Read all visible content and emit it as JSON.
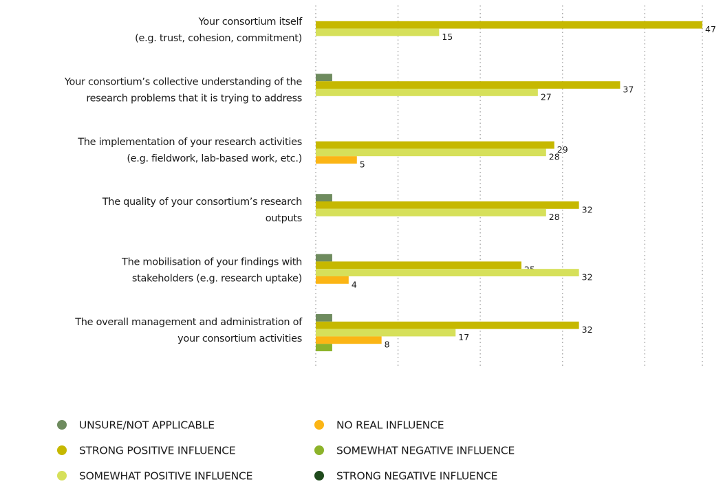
{
  "chart_data": {
    "type": "bar",
    "orientation": "horizontal",
    "categories": [
      [
        "Your consortium itself",
        "(e.g. trust, cohesion, commitment)"
      ],
      [
        "Your consortium’s collective understanding of the",
        "research problems that it is trying to address"
      ],
      [
        "The implementation of your research activities",
        "(e.g. fieldwork, lab-based work, etc.)"
      ],
      [
        "The quality of your consortium’s research",
        "outputs"
      ],
      [
        "The mobilisation of your findings with",
        "stakeholders (e.g. research uptake)"
      ],
      [
        "The overall management and administration of",
        "your consortium activities"
      ]
    ],
    "series": [
      {
        "name": "UNSURE/NOT APPLICABLE",
        "color": "#6e8b5e",
        "data_labels": false,
        "values": [
          null,
          2,
          null,
          2,
          2,
          2
        ]
      },
      {
        "name": "STRONG POSITIVE INFLUENCE",
        "color": "#c6b800",
        "data_labels": true,
        "values": [
          47,
          37,
          29,
          32,
          25,
          32
        ]
      },
      {
        "name": "SOMEWHAT POSITIVE INFLUENCE",
        "color": "#d6e05a",
        "data_labels": true,
        "values": [
          15,
          27,
          28,
          28,
          32,
          17
        ]
      },
      {
        "name": "NO REAL INFLUENCE",
        "color": "#fbb515",
        "data_labels": true,
        "values": [
          null,
          null,
          5,
          null,
          4,
          8
        ]
      },
      {
        "name": "SOMEWHAT NEGATIVE INFLUENCE",
        "color": "#8cb32a",
        "data_labels": false,
        "values": [
          null,
          null,
          null,
          null,
          null,
          2
        ]
      },
      {
        "name": "STRONG NEGATIVE INFLUENCE",
        "color": "#1f4a1c",
        "data_labels": false,
        "values": [
          null,
          null,
          null,
          null,
          null,
          null
        ]
      }
    ],
    "xlim": [
      0,
      47
    ],
    "xticks": [
      0,
      10,
      20,
      30,
      40,
      47
    ],
    "grid": true
  }
}
